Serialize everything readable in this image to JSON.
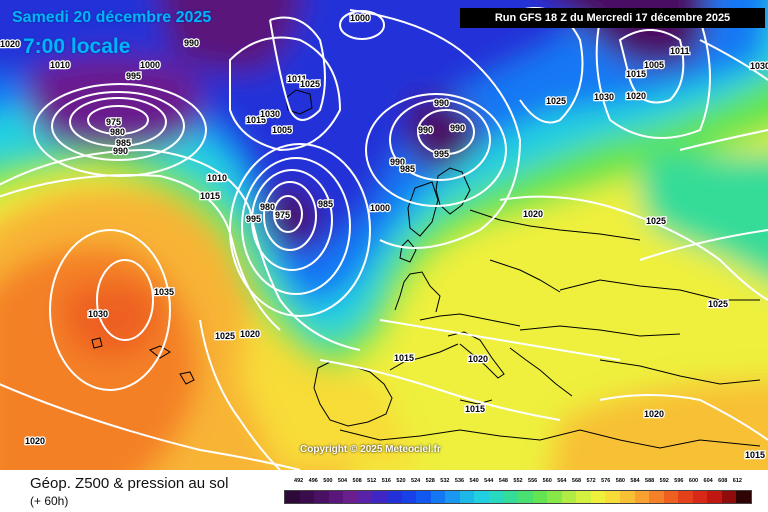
{
  "header": {
    "title": "Samedi 20 décembre 2025",
    "local_time": "7:00 locale",
    "run_info": "Run GFS 18 Z du Mercredi 17 décembre 2025"
  },
  "copyright": "Copyright © 2025 Meteociel.fr",
  "footer": {
    "title": "Géop. Z500 & pression au sol",
    "subtitle": "(+ 60h)"
  },
  "scale": {
    "ticks": [
      "492",
      "496",
      "500",
      "504",
      "508",
      "512",
      "516",
      "520",
      "524",
      "528",
      "532",
      "536",
      "540",
      "544",
      "548",
      "552",
      "556",
      "560",
      "564",
      "568",
      "572",
      "576",
      "580",
      "584",
      "588",
      "592",
      "596",
      "600",
      "604",
      "608",
      "612"
    ],
    "colors": [
      "#2e0a38",
      "#3a0c4e",
      "#4a1064",
      "#5a167a",
      "#6b1e8e",
      "#5a22a8",
      "#4026c4",
      "#2430d8",
      "#1840e8",
      "#1058f0",
      "#1478f4",
      "#1898f0",
      "#1cb8e8",
      "#20d0e0",
      "#28d8c0",
      "#34dc98",
      "#48e070",
      "#64e450",
      "#88e848",
      "#b0ec44",
      "#d4f040",
      "#eef03c",
      "#f8dc38",
      "#f8c034",
      "#f8a030",
      "#f48028",
      "#ee6020",
      "#e4401c",
      "#d82818",
      "#c01810",
      "#900c0c",
      "#300404"
    ]
  },
  "pressure_labels": [
    "1000",
    "990",
    "1020",
    "1010",
    "1000",
    "995",
    "975",
    "980",
    "985",
    "990",
    "1011",
    "1025",
    "1015",
    "1030",
    "1005",
    "990",
    "990",
    "990",
    "990",
    "985",
    "995",
    "1025",
    "1030",
    "1020",
    "1015",
    "1005",
    "1011",
    "1030",
    "1010",
    "1015",
    "980",
    "975",
    "995",
    "985",
    "1000",
    "1020",
    "1025",
    "1035",
    "1030",
    "1025",
    "1020",
    "1025",
    "1015",
    "1020",
    "1015",
    "1020",
    "1020",
    "1015"
  ],
  "legend_colors": {
    "label_text": "#000000",
    "isobar": "#ffffff",
    "coast": "#000000",
    "brand_cyan": "#00b4ff"
  }
}
